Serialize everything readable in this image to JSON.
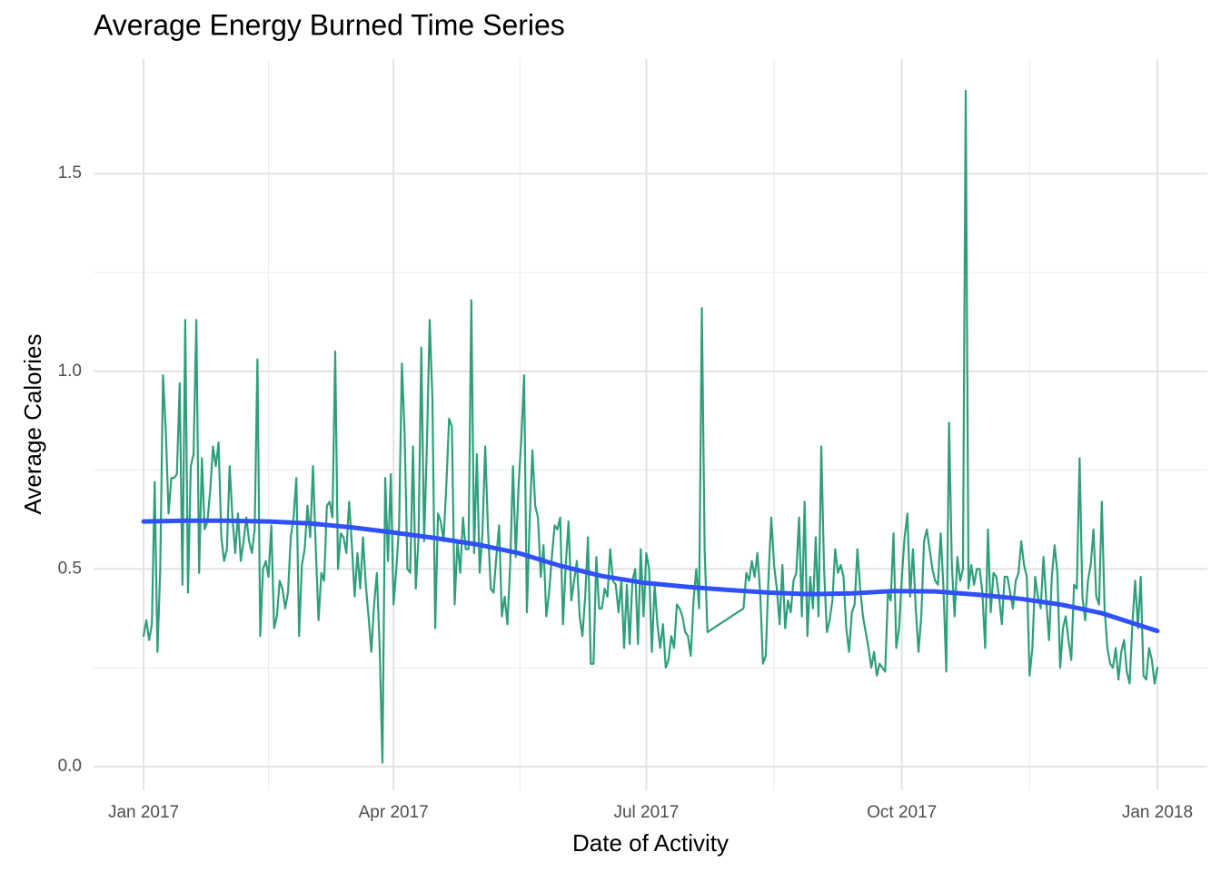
{
  "chart_data": {
    "type": "line",
    "title": "Average Energy Burned Time Series",
    "x_label": "Date of Activity",
    "y_label": "Average Calories",
    "xlim": [
      -18,
      383
    ],
    "ylim": [
      -0.06,
      1.79
    ],
    "xticks": [
      {
        "value": 0,
        "label": "Jan 2017"
      },
      {
        "value": 90,
        "label": "Apr 2017"
      },
      {
        "value": 181,
        "label": "Jul 2017"
      },
      {
        "value": 273,
        "label": "Oct 2017"
      },
      {
        "value": 365,
        "label": "Jan 2018"
      }
    ],
    "yticks": [
      0.0,
      0.5,
      1.0,
      1.5
    ],
    "x_minor_ticks": [
      45,
      135.5,
      227,
      319
    ],
    "y_minor_ticks": [
      0.25,
      0.75,
      1.25
    ],
    "grid": true,
    "series": [
      {
        "color": "#2e9e7c",
        "width": 2.2,
        "x": [
          0,
          1,
          2,
          3,
          4,
          5,
          6,
          7,
          8,
          9,
          10,
          11,
          12,
          13,
          14,
          15,
          16,
          17,
          18,
          19,
          20,
          21,
          22,
          23,
          24,
          25,
          26,
          27,
          28,
          29,
          30,
          31,
          32,
          33,
          34,
          35,
          36,
          37,
          38,
          39,
          40,
          41,
          42,
          43,
          44,
          45,
          46,
          47,
          48,
          49,
          50,
          51,
          52,
          53,
          54,
          55,
          56,
          57,
          58,
          59,
          60,
          61,
          62,
          63,
          64,
          65,
          66,
          67,
          68,
          69,
          70,
          71,
          72,
          73,
          74,
          75,
          76,
          77,
          78,
          79,
          80,
          81,
          82,
          83,
          84,
          85,
          86,
          87,
          88,
          89,
          90,
          91,
          92,
          93,
          94,
          95,
          96,
          97,
          98,
          99,
          100,
          101,
          102,
          103,
          104,
          105,
          106,
          107,
          108,
          109,
          110,
          111,
          112,
          113,
          114,
          115,
          116,
          117,
          118,
          119,
          120,
          121,
          122,
          123,
          124,
          125,
          126,
          127,
          128,
          129,
          130,
          131,
          132,
          133,
          134,
          135,
          136,
          137,
          138,
          139,
          140,
          141,
          142,
          143,
          144,
          145,
          146,
          147,
          148,
          149,
          150,
          151,
          152,
          153,
          154,
          155,
          156,
          157,
          158,
          159,
          160,
          161,
          162,
          163,
          164,
          165,
          166,
          167,
          168,
          169,
          170,
          171,
          172,
          173,
          174,
          175,
          176,
          177,
          178,
          179,
          180,
          181,
          182,
          183,
          184,
          185,
          186,
          187,
          188,
          189,
          190,
          191,
          192,
          193,
          194,
          195,
          196,
          197,
          198,
          199,
          200,
          201,
          202,
          203,
          216,
          217,
          218,
          219,
          220,
          221,
          222,
          223,
          224,
          225,
          226,
          227,
          228,
          229,
          230,
          231,
          232,
          233,
          234,
          235,
          236,
          237,
          238,
          239,
          240,
          241,
          242,
          243,
          244,
          245,
          246,
          247,
          248,
          249,
          250,
          251,
          252,
          253,
          254,
          255,
          256,
          257,
          258,
          259,
          260,
          261,
          262,
          263,
          264,
          265,
          266,
          267,
          268,
          269,
          270,
          271,
          272,
          273,
          274,
          275,
          276,
          277,
          278,
          279,
          280,
          281,
          282,
          283,
          284,
          285,
          286,
          287,
          288,
          289,
          290,
          291,
          292,
          293,
          294,
          295,
          296,
          297,
          298,
          299,
          300,
          301,
          302,
          303,
          304,
          305,
          306,
          307,
          308,
          309,
          310,
          311,
          312,
          313,
          314,
          315,
          316,
          317,
          318,
          319,
          320,
          321,
          322,
          323,
          324,
          325,
          326,
          327,
          328,
          329,
          330,
          331,
          332,
          333,
          334,
          335,
          336,
          337,
          338,
          339,
          340,
          341,
          342,
          343,
          344,
          345,
          346,
          347,
          348,
          349,
          350,
          351,
          352,
          353,
          354,
          355,
          356,
          357,
          358,
          359,
          360,
          361,
          362,
          363,
          364,
          365
        ],
        "values": [
          0.33,
          0.37,
          0.32,
          0.36,
          0.72,
          0.29,
          0.5,
          0.99,
          0.85,
          0.64,
          0.73,
          0.73,
          0.74,
          0.97,
          0.46,
          1.13,
          0.44,
          0.76,
          0.79,
          1.13,
          0.49,
          0.78,
          0.6,
          0.62,
          0.7,
          0.81,
          0.76,
          0.82,
          0.58,
          0.52,
          0.55,
          0.76,
          0.63,
          0.54,
          0.64,
          0.52,
          0.57,
          0.63,
          0.57,
          0.54,
          0.6,
          1.03,
          0.33,
          0.5,
          0.52,
          0.48,
          0.61,
          0.35,
          0.38,
          0.47,
          0.45,
          0.4,
          0.44,
          0.58,
          0.63,
          0.73,
          0.33,
          0.51,
          0.55,
          0.66,
          0.58,
          0.76,
          0.55,
          0.37,
          0.49,
          0.47,
          0.66,
          0.67,
          0.63,
          1.05,
          0.5,
          0.59,
          0.58,
          0.54,
          0.67,
          0.56,
          0.43,
          0.54,
          0.45,
          0.58,
          0.46,
          0.38,
          0.29,
          0.41,
          0.49,
          0.3,
          0.01,
          0.73,
          0.52,
          0.74,
          0.41,
          0.5,
          0.61,
          1.02,
          0.84,
          0.5,
          0.49,
          0.81,
          0.45,
          0.58,
          1.06,
          0.57,
          0.81,
          1.13,
          0.93,
          0.35,
          0.64,
          0.62,
          0.57,
          0.71,
          0.88,
          0.86,
          0.41,
          0.57,
          0.49,
          0.63,
          0.55,
          0.55,
          1.18,
          0.54,
          0.79,
          0.49,
          0.59,
          0.81,
          0.6,
          0.45,
          0.44,
          0.53,
          0.61,
          0.38,
          0.43,
          0.36,
          0.51,
          0.76,
          0.53,
          0.71,
          0.83,
          0.99,
          0.39,
          0.62,
          0.8,
          0.66,
          0.63,
          0.48,
          0.56,
          0.38,
          0.44,
          0.53,
          0.61,
          0.6,
          0.63,
          0.36,
          0.51,
          0.62,
          0.42,
          0.47,
          0.52,
          0.38,
          0.33,
          0.43,
          0.58,
          0.26,
          0.26,
          0.53,
          0.4,
          0.4,
          0.45,
          0.43,
          0.55,
          0.47,
          0.46,
          0.39,
          0.47,
          0.3,
          0.46,
          0.31,
          0.47,
          0.5,
          0.31,
          0.55,
          0.38,
          0.54,
          0.5,
          0.29,
          0.46,
          0.36,
          0.3,
          0.36,
          0.25,
          0.27,
          0.33,
          0.3,
          0.41,
          0.4,
          0.38,
          0.34,
          0.33,
          0.28,
          0.42,
          0.5,
          0.4,
          1.16,
          0.55,
          0.34,
          0.4,
          0.49,
          0.47,
          0.52,
          0.48,
          0.54,
          0.44,
          0.26,
          0.28,
          0.48,
          0.63,
          0.51,
          0.45,
          0.36,
          0.51,
          0.35,
          0.42,
          0.39,
          0.47,
          0.49,
          0.63,
          0.38,
          0.67,
          0.33,
          0.48,
          0.4,
          0.58,
          0.38,
          0.81,
          0.5,
          0.34,
          0.37,
          0.42,
          0.55,
          0.49,
          0.51,
          0.48,
          0.35,
          0.29,
          0.39,
          0.41,
          0.55,
          0.45,
          0.38,
          0.34,
          0.3,
          0.25,
          0.29,
          0.23,
          0.26,
          0.25,
          0.24,
          0.44,
          0.42,
          0.59,
          0.3,
          0.35,
          0.48,
          0.58,
          0.64,
          0.43,
          0.55,
          0.4,
          0.29,
          0.38,
          0.57,
          0.6,
          0.55,
          0.5,
          0.47,
          0.46,
          0.59,
          0.45,
          0.24,
          0.87,
          0.51,
          0.38,
          0.53,
          0.47,
          0.5,
          1.71,
          0.45,
          0.51,
          0.46,
          0.5,
          0.5,
          0.44,
          0.3,
          0.6,
          0.39,
          0.49,
          0.48,
          0.43,
          0.36,
          0.48,
          0.48,
          0.44,
          0.4,
          0.47,
          0.49,
          0.57,
          0.51,
          0.48,
          0.23,
          0.3,
          0.48,
          0.43,
          0.4,
          0.53,
          0.42,
          0.32,
          0.48,
          0.56,
          0.49,
          0.25,
          0.35,
          0.38,
          0.32,
          0.27,
          0.46,
          0.45,
          0.78,
          0.43,
          0.37,
          0.47,
          0.51,
          0.6,
          0.43,
          0.41,
          0.67,
          0.4,
          0.3,
          0.26,
          0.25,
          0.3,
          0.22,
          0.29,
          0.32,
          0.24,
          0.21,
          0.36,
          0.47,
          0.35,
          0.48,
          0.23,
          0.22,
          0.3,
          0.27,
          0.21,
          0.25
        ]
      },
      {
        "color": "#3050f8",
        "width": 5,
        "x": [
          0,
          15,
          30,
          45,
          60,
          75,
          90,
          105,
          120,
          135,
          150,
          165,
          180,
          195,
          210,
          225,
          240,
          255,
          270,
          285,
          300,
          315,
          330,
          345,
          365
        ],
        "values": [
          0.62,
          0.622,
          0.622,
          0.62,
          0.615,
          0.605,
          0.592,
          0.578,
          0.562,
          0.54,
          0.508,
          0.482,
          0.465,
          0.455,
          0.447,
          0.44,
          0.436,
          0.438,
          0.444,
          0.443,
          0.435,
          0.425,
          0.41,
          0.388,
          0.343
        ]
      }
    ]
  }
}
